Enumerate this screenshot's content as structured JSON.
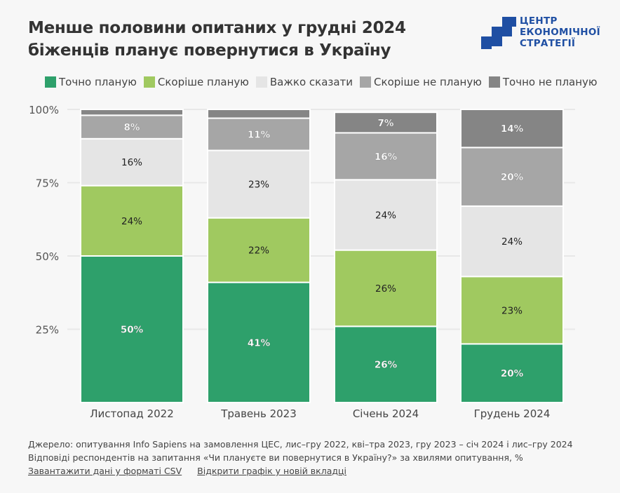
{
  "header": {
    "title_line1": "Менше половини опитаних у грудні 2024",
    "title_line2": "біженців планує повернутися в Україну"
  },
  "logo": {
    "lines": [
      "ЦЕНТР",
      "ЕКОНОМІЧНОЇ",
      "СТРАТЕГІЇ"
    ],
    "color": "#1f4fa3"
  },
  "chart_data": {
    "type": "bar",
    "stacked": true,
    "title": "Менше половини опитаних у грудні 2024 біженців планує повернутися в Україну",
    "categories": [
      "Листопад 2022",
      "Травень 2023",
      "Січень 2024",
      "Грудень 2024"
    ],
    "series": [
      {
        "name": "Точно планую",
        "color": "#2ea06b",
        "label_color": "#ffffff",
        "values": [
          50,
          41,
          26,
          20
        ],
        "labels": [
          "50%",
          "41%",
          "26%",
          "20%"
        ]
      },
      {
        "name": "Скоріше планую",
        "color": "#a0c960",
        "label_color": "#222222",
        "values": [
          24,
          22,
          26,
          23
        ],
        "labels": [
          "24%",
          "22%",
          "26%",
          "23%"
        ]
      },
      {
        "name": "Важко сказати",
        "color": "#e5e5e5",
        "label_color": "#222222",
        "values": [
          16,
          23,
          24,
          24
        ],
        "labels": [
          "16%",
          "23%",
          "24%",
          "24%"
        ]
      },
      {
        "name": "Скоріше не планую",
        "color": "#a6a6a6",
        "label_color": "#ffffff",
        "values": [
          8,
          11,
          16,
          20
        ],
        "labels": [
          "8%",
          "11%",
          "16%",
          "20%"
        ]
      },
      {
        "name": "Точно не планую",
        "color": "#858585",
        "label_color": "#ffffff",
        "values": [
          2,
          3,
          7,
          14
        ],
        "labels": [
          "",
          "",
          "7%",
          "14%"
        ]
      }
    ],
    "ylim": [
      0,
      100
    ],
    "yticks": [
      25,
      50,
      75,
      100
    ],
    "ytick_labels": [
      "25%",
      "50%",
      "75%",
      "100%"
    ],
    "xlabel": "",
    "ylabel": "",
    "grid": true,
    "legend_position": "top"
  },
  "footer": {
    "source": "Джерело: опитування Info Sapiens на замовлення ЦЕС, лис–гру 2022, кві–тра 2023, гру 2023 – січ 2024 і лис–гру 2024",
    "note": "Відповіді респондентів на запитання «Чи плануєте ви повернутися в Україну?» за хвилями опитування, %",
    "links": [
      "Завантажити дані у форматі CSV",
      "Відкрити графік у новій вкладці"
    ]
  }
}
